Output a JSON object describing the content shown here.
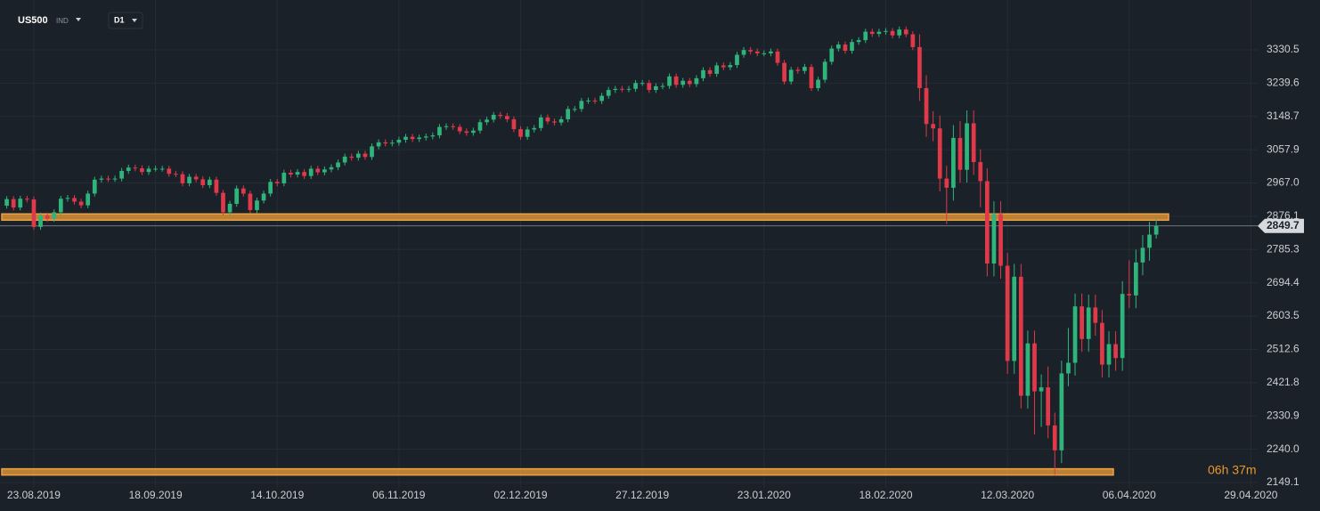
{
  "chart_data": {
    "type": "candlestick",
    "symbol": "US500",
    "market": "IND",
    "timeframe": "D1",
    "countdown": "06h 37m",
    "current_price": 2849.7,
    "levels": [
      2874,
      2178
    ],
    "level_color": "#f0a03c",
    "up_color": "#2fb47c",
    "down_color": "#e0394a",
    "grid": true,
    "xlim": [
      -1,
      185
    ],
    "xticks": [
      {
        "value": 4,
        "label": "23.08.2019"
      },
      {
        "value": 22,
        "label": "18.09.2019"
      },
      {
        "value": 40,
        "label": "14.10.2019"
      },
      {
        "value": 58,
        "label": "06.11.2019"
      },
      {
        "value": 76,
        "label": "02.12.2019"
      },
      {
        "value": 94,
        "label": "27.12.2019"
      },
      {
        "value": 112,
        "label": "23.01.2020"
      },
      {
        "value": 130,
        "label": "18.02.2020"
      },
      {
        "value": 148,
        "label": "12.03.2020"
      },
      {
        "value": 166,
        "label": "06.04.2020"
      },
      {
        "value": 184,
        "label": "29.04.2020"
      }
    ],
    "ylim": [
      2134.5,
      3466.6
    ],
    "yticks": [
      2149.1,
      {
        "value": 2240,
        "label": "2240.0"
      },
      2330.9,
      2421.8,
      2512.6,
      2603.5,
      2694.4,
      2785.3,
      2876.1,
      {
        "value": 2967,
        "label": "2967.0"
      },
      3057.9,
      3148.7,
      3239.6,
      3330.5
    ],
    "open": [
      2905,
      2923,
      2900,
      2924,
      2922,
      2847,
      2878,
      2869,
      2887,
      2924,
      2926,
      2916,
      2906,
      2938,
      2976,
      2979,
      2978,
      2979,
      3000,
      3009,
      3007,
      2997,
      3006,
      3006,
      3006,
      2992,
      2991,
      2966,
      2984,
      2977,
      2961,
      2976,
      2940,
      2887,
      2910,
      2952,
      2938,
      2893,
      2919,
      2938,
      2970,
      2966,
      2995,
      2990,
      2997,
      2986,
      3006,
      2996,
      3004,
      3010,
      3023,
      3039,
      3036,
      3047,
      3038,
      3067,
      3078,
      3075,
      3077,
      3085,
      3093,
      3087,
      3091,
      3094,
      3097,
      3120,
      3122,
      3120,
      3108,
      3104,
      3110,
      3133,
      3140,
      3153,
      3150,
      3141,
      3114,
      3093,
      3113,
      3117,
      3146,
      3135,
      3132,
      3141,
      3169,
      3169,
      3191,
      3192,
      3191,
      3205,
      3221,
      3224,
      3223,
      3224,
      3240,
      3240,
      3221,
      3231,
      3232,
      3258,
      3235,
      3246,
      3237,
      3253,
      3275,
      3265,
      3288,
      3283,
      3289,
      3317,
      3330,
      3326,
      3321,
      3321,
      3326,
      3295,
      3244,
      3276,
      3273,
      3284,
      3226,
      3249,
      3298,
      3334,
      3345,
      3328,
      3352,
      3357,
      3380,
      3374,
      3380,
      3382,
      3370,
      3386,
      3373,
      3338,
      3226,
      3128,
      3116,
      2979,
      2954,
      3090,
      3003,
      3130,
      3024,
      2972,
      2747,
      2882,
      2741,
      2481,
      2711,
      2386,
      2529,
      2398,
      2409,
      2305,
      2237,
      2447,
      2476,
      2630,
      2541,
      2627,
      2585,
      2471,
      2527,
      2489,
      2664,
      2660,
      2750,
      2790,
      2826
    ],
    "high": [
      2931,
      2931,
      2932,
      2932,
      2930,
      2886,
      2886,
      2895,
      2932,
      2934,
      2934,
      2924,
      2946,
      2984,
      2987,
      2987,
      2987,
      3008,
      3017,
      3017,
      3015,
      3014,
      3014,
      3014,
      3014,
      3000,
      2999,
      2992,
      2992,
      2985,
      2984,
      2984,
      2948,
      2918,
      2960,
      2960,
      2946,
      2927,
      2946,
      2978,
      2978,
      3003,
      3003,
      3005,
      3005,
      3014,
      3014,
      3012,
      3018,
      3031,
      3047,
      3047,
      3055,
      3055,
      3075,
      3086,
      3086,
      3085,
      3093,
      3101,
      3101,
      3099,
      3102,
      3105,
      3128,
      3130,
      3130,
      3128,
      3116,
      3118,
      3141,
      3148,
      3161,
      3161,
      3158,
      3149,
      3122,
      3121,
      3125,
      3154,
      3154,
      3143,
      3149,
      3177,
      3177,
      3199,
      3200,
      3200,
      3213,
      3229,
      3232,
      3232,
      3232,
      3248,
      3248,
      3248,
      3239,
      3240,
      3266,
      3266,
      3254,
      3254,
      3261,
      3283,
      3283,
      3296,
      3296,
      3297,
      3325,
      3338,
      3338,
      3334,
      3329,
      3334,
      3334,
      3303,
      3284,
      3284,
      3292,
      3292,
      3257,
      3306,
      3342,
      3353,
      3353,
      3360,
      3365,
      3388,
      3388,
      3388,
      3390,
      3390,
      3394,
      3394,
      3381,
      3373,
      3261,
      3163,
      3151,
      3014,
      3125,
      3136,
      3165,
      3165,
      3059,
      3007,
      2917,
      2917,
      2776,
      2746,
      2746,
      2564,
      2564,
      2444,
      2466,
      2340,
      2482,
      2571,
      2665,
      2665,
      2662,
      2662,
      2620,
      2562,
      2562,
      2699,
      2756,
      2785,
      2825,
      2861,
      2870
    ],
    "low": [
      2897,
      2892,
      2892,
      2914,
      2839,
      2839,
      2861,
      2861,
      2879,
      2916,
      2908,
      2898,
      2898,
      2930,
      2968,
      2970,
      2970,
      2971,
      2992,
      2999,
      2989,
      2989,
      2998,
      2998,
      2984,
      2983,
      2958,
      2958,
      2969,
      2953,
      2953,
      2932,
      2879,
      2879,
      2902,
      2930,
      2885,
      2885,
      2911,
      2930,
      2958,
      2958,
      2982,
      2982,
      2978,
      2978,
      2988,
      2988,
      2996,
      3002,
      3015,
      3028,
      3028,
      3030,
      3030,
      3059,
      3067,
      3067,
      3069,
      3077,
      3079,
      3079,
      3083,
      3086,
      3089,
      3112,
      3112,
      3100,
      3096,
      3096,
      3102,
      3125,
      3132,
      3142,
      3133,
      3106,
      3085,
      3085,
      3105,
      3109,
      3127,
      3124,
      3124,
      3133,
      3161,
      3161,
      3183,
      3183,
      3183,
      3197,
      3213,
      3215,
      3215,
      3216,
      3232,
      3213,
      3213,
      3223,
      3224,
      3227,
      3227,
      3229,
      3229,
      3245,
      3257,
      3257,
      3275,
      3275,
      3281,
      3309,
      3318,
      3313,
      3313,
      3313,
      3287,
      3236,
      3236,
      3265,
      3265,
      3218,
      3218,
      3241,
      3290,
      3326,
      3320,
      3320,
      3344,
      3349,
      3366,
      3366,
      3372,
      3362,
      3362,
      3365,
      3330,
      3191,
      3093,
      3081,
      2944,
      2855,
      2919,
      2968,
      2968,
      2989,
      2901,
      2712,
      2712,
      2706,
      2446,
      2446,
      2351,
      2351,
      2280,
      2301,
      2270,
      2170,
      2202,
      2412,
      2441,
      2506,
      2506,
      2550,
      2436,
      2436,
      2454,
      2454,
      2625,
      2625,
      2715,
      2755,
      2815
    ],
    "close": [
      2923,
      2900,
      2924,
      2922,
      2847,
      2878,
      2869,
      2887,
      2924,
      2926,
      2916,
      2906,
      2938,
      2976,
      2979,
      2978,
      2979,
      3000,
      3009,
      3007,
      2997,
      3006,
      3006,
      3006,
      2992,
      2991,
      2966,
      2984,
      2977,
      2961,
      2976,
      2940,
      2887,
      2910,
      2952,
      2938,
      2893,
      2919,
      2938,
      2970,
      2966,
      2995,
      2990,
      2997,
      2986,
      3006,
      2996,
      3004,
      3010,
      3023,
      3039,
      3036,
      3047,
      3038,
      3067,
      3078,
      3075,
      3077,
      3085,
      3093,
      3087,
      3091,
      3094,
      3097,
      3120,
      3122,
      3120,
      3108,
      3104,
      3110,
      3133,
      3140,
      3153,
      3150,
      3141,
      3114,
      3093,
      3113,
      3117,
      3146,
      3135,
      3132,
      3141,
      3169,
      3169,
      3191,
      3192,
      3191,
      3205,
      3221,
      3224,
      3223,
      3224,
      3240,
      3240,
      3221,
      3231,
      3232,
      3258,
      3235,
      3246,
      3237,
      3253,
      3275,
      3265,
      3288,
      3283,
      3289,
      3317,
      3330,
      3326,
      3321,
      3321,
      3326,
      3295,
      3244,
      3276,
      3273,
      3284,
      3226,
      3249,
      3298,
      3334,
      3345,
      3328,
      3352,
      3357,
      3380,
      3374,
      3380,
      3382,
      3370,
      3386,
      3373,
      3338,
      3226,
      3128,
      3116,
      2979,
      2954,
      3090,
      3003,
      3130,
      3024,
      2972,
      2747,
      2882,
      2741,
      2481,
      2711,
      2386,
      2529,
      2398,
      2409,
      2305,
      2237,
      2447,
      2476,
      2630,
      2541,
      2627,
      2585,
      2471,
      2527,
      2489,
      2664,
      2660,
      2750,
      2790,
      2826,
      2849.7
    ]
  }
}
